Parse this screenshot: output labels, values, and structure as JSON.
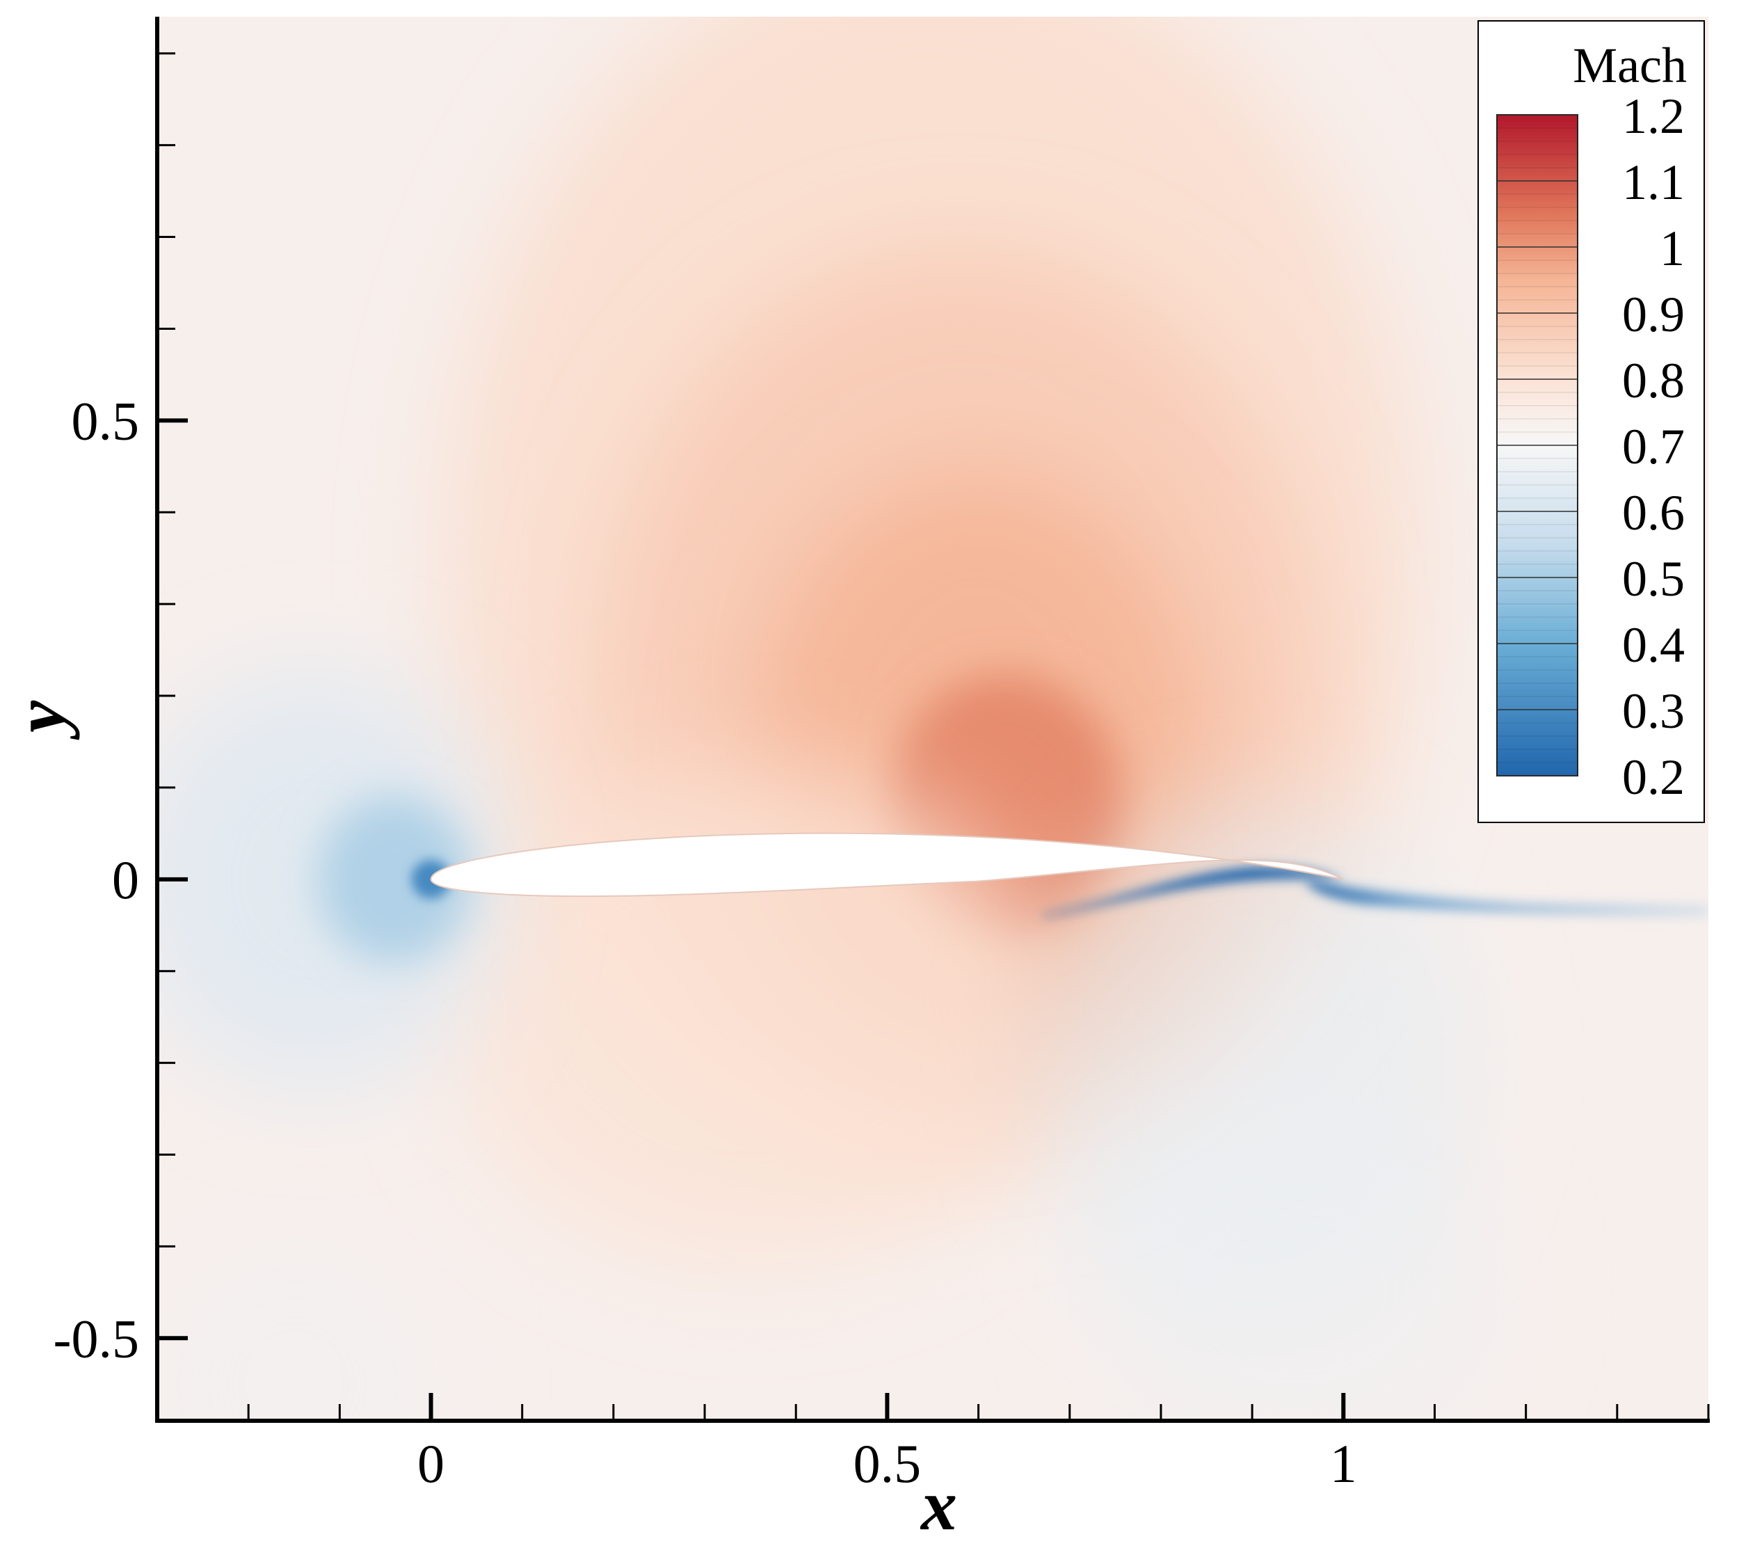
{
  "chart_data": {
    "type": "heatmap",
    "title": "",
    "xlabel": "x",
    "ylabel": "y",
    "xlim": [
      -0.3,
      1.4
    ],
    "ylim": [
      -0.59,
      0.94
    ],
    "x_ticks": [
      {
        "value": 0,
        "label": "0"
      },
      {
        "value": 0.5,
        "label": "0.5"
      },
      {
        "value": 1,
        "label": "1"
      }
    ],
    "y_ticks": [
      {
        "value": 0.5,
        "label": "0.5"
      },
      {
        "value": 0,
        "label": "0"
      },
      {
        "value": -0.5,
        "label": "-0.5"
      }
    ],
    "x_minor_step": 0.1,
    "y_minor_step": 0.1,
    "grid": false,
    "legend": {
      "title": "Mach",
      "placement": "top-right",
      "min": 0.2,
      "max": 1.2,
      "tick_labels": [
        "1.2",
        "1.1",
        "1",
        "0.9",
        "0.8",
        "0.7",
        "0.6",
        "0.5",
        "0.4",
        "0.3",
        "0.2"
      ]
    },
    "colormap": [
      {
        "value": 0.2,
        "color": "#2166ac"
      },
      {
        "value": 0.4,
        "color": "#6aaed6"
      },
      {
        "value": 0.55,
        "color": "#c6dcec"
      },
      {
        "value": 0.7,
        "color": "#f7f7f7"
      },
      {
        "value": 0.8,
        "color": "#fbe3d6"
      },
      {
        "value": 0.95,
        "color": "#f5b596"
      },
      {
        "value": 1.05,
        "color": "#e0765a"
      },
      {
        "value": 1.2,
        "color": "#b2182b"
      }
    ],
    "freestream_mach": 0.75,
    "features": [
      {
        "name": "supersonic region",
        "x": 0.63,
        "y": 0.09,
        "mach": 1.05
      },
      {
        "name": "stagnation point",
        "x": 0.0,
        "y": 0.0,
        "mach": 0.2
      },
      {
        "name": "lower surface separation",
        "x": 0.9,
        "y": 0.0,
        "mach": 0.3
      },
      {
        "name": "wake",
        "x": 1.2,
        "y": -0.02,
        "mach": 0.45
      }
    ]
  }
}
